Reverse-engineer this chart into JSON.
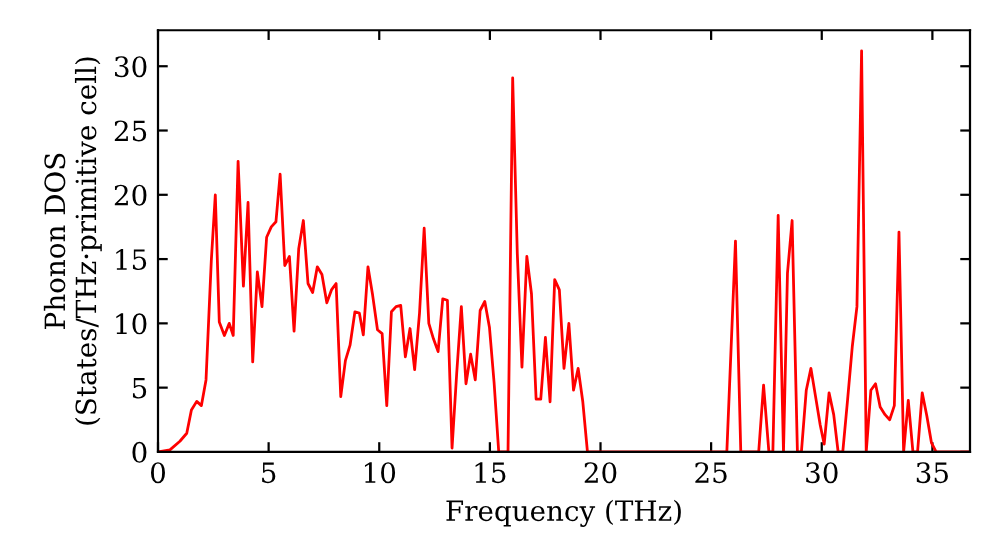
{
  "chart_data": {
    "type": "line",
    "xlabel": "Frequency (THz)",
    "ylabel": "Phonon DOS\n(States/THz·primitive cell)",
    "xlim": [
      0,
      36.7
    ],
    "ylim": [
      0,
      32.8
    ],
    "xticks": [
      0,
      5,
      10,
      15,
      20,
      25,
      30,
      35
    ],
    "yticks": [
      0,
      5,
      10,
      15,
      20,
      25,
      30
    ],
    "grid": false,
    "legend": false,
    "marker": "none",
    "line_style": "solid",
    "series": [
      {
        "color": "#ff0000",
        "x": [
          0,
          0.54,
          0.99,
          1.3,
          1.51,
          1.75,
          1.96,
          2.17,
          2.41,
          2.59,
          2.77,
          3.0,
          3.22,
          3.4,
          3.62,
          3.86,
          4.07,
          4.28,
          4.49,
          4.7,
          4.91,
          5.12,
          5.33,
          5.52,
          5.73,
          5.94,
          6.15,
          6.36,
          6.57,
          6.78,
          6.99,
          7.2,
          7.41,
          7.63,
          7.84,
          8.05,
          8.26,
          8.47,
          8.68,
          8.9,
          9.1,
          9.28,
          9.49,
          9.7,
          9.92,
          10.13,
          10.34,
          10.55,
          10.76,
          10.97,
          11.18,
          11.39,
          11.6,
          11.82,
          12.03,
          12.24,
          12.45,
          12.66,
          12.87,
          13.08,
          13.29,
          13.5,
          13.71,
          13.92,
          14.13,
          14.34,
          14.56,
          14.77,
          14.98,
          15.19,
          15.4,
          15.82,
          16.03,
          16.24,
          16.45,
          16.67,
          16.88,
          17.09,
          17.3,
          17.51,
          17.72,
          17.93,
          18.14,
          18.35,
          18.57,
          18.78,
          18.99,
          19.2,
          19.41,
          25.71,
          26.1,
          26.34,
          27.15,
          27.37,
          27.61,
          27.79,
          28.03,
          28.27,
          28.45,
          28.66,
          28.9,
          29.08,
          29.3,
          29.51,
          29.72,
          29.93,
          30.11,
          30.33,
          30.54,
          30.74,
          30.95,
          31.17,
          31.38,
          31.59,
          31.8,
          32.01,
          32.22,
          32.43,
          32.64,
          32.86,
          33.07,
          33.28,
          33.49,
          33.7,
          33.91,
          34.12,
          34.33,
          34.54,
          34.75,
          34.96,
          35.17,
          36.68
        ],
        "values": [
          0,
          0.16,
          0.83,
          1.45,
          3.26,
          3.93,
          3.6,
          5.6,
          14.9,
          20.0,
          10.1,
          9.06,
          10.0,
          9.06,
          22.6,
          12.9,
          19.4,
          7.0,
          14.0,
          11.3,
          16.7,
          17.5,
          17.9,
          21.6,
          14.5,
          15.2,
          9.4,
          15.8,
          18.0,
          13.1,
          12.4,
          14.4,
          13.8,
          11.6,
          12.6,
          13.1,
          4.3,
          7.1,
          8.3,
          10.9,
          10.8,
          9.1,
          14.4,
          12.2,
          9.5,
          9.2,
          3.6,
          10.9,
          11.3,
          11.4,
          7.4,
          9.6,
          6.4,
          10.8,
          17.4,
          10.0,
          8.8,
          7.8,
          11.9,
          11.8,
          0.3,
          6.1,
          11.3,
          5.3,
          7.6,
          5.6,
          11.0,
          11.7,
          9.7,
          5.4,
          0,
          0,
          29.1,
          15.4,
          6.6,
          15.2,
          12.3,
          4.1,
          4.1,
          8.9,
          3.9,
          13.4,
          12.6,
          6.5,
          10.0,
          4.8,
          6.5,
          3.9,
          0,
          0,
          16.4,
          0,
          0,
          5.2,
          0,
          0,
          18.4,
          0,
          13.9,
          18.0,
          0,
          0,
          4.8,
          6.5,
          4.3,
          2.1,
          0.6,
          4.6,
          2.9,
          0,
          0,
          4.1,
          8.2,
          11.3,
          31.2,
          0,
          4.8,
          5.3,
          3.5,
          2.9,
          2.5,
          3.6,
          17.1,
          0,
          4.0,
          0,
          0,
          4.6,
          2.8,
          0.7,
          0,
          0
        ]
      }
    ]
  }
}
